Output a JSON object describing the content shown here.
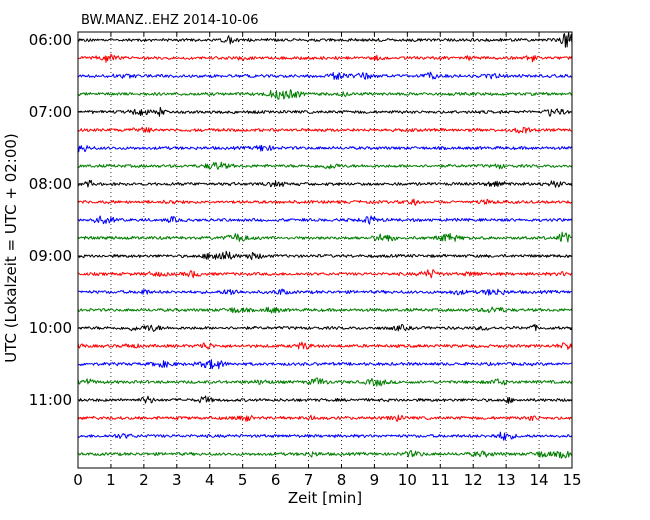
{
  "chart_data": {
    "type": "line",
    "title": "BW.MANZ..EHZ 2014-10-06",
    "xlabel": "Zeit  [min]",
    "ylabel": "UTC (Lokalzeit = UTC + 02:00)",
    "xlim": [
      0,
      15
    ],
    "x_ticks": [
      0,
      1,
      2,
      3,
      4,
      5,
      6,
      7,
      8,
      9,
      10,
      11,
      12,
      13,
      14,
      15
    ],
    "y_tick_labels": [
      "06:00",
      "07:00",
      "08:00",
      "09:00",
      "10:00",
      "11:00"
    ],
    "start_time": "06:00",
    "trace_interval_min": 15,
    "trace_count": 24,
    "trace_colors": [
      "#000000",
      "#ff0000",
      "#0000ff",
      "#007f00"
    ],
    "vertical_grid": "dotted",
    "series": [
      {
        "start": "06:00"
      },
      {
        "start": "06:15"
      },
      {
        "start": "06:30"
      },
      {
        "start": "06:45"
      },
      {
        "start": "07:00"
      },
      {
        "start": "07:15"
      },
      {
        "start": "07:30"
      },
      {
        "start": "07:45"
      },
      {
        "start": "08:00"
      },
      {
        "start": "08:15"
      },
      {
        "start": "08:30"
      },
      {
        "start": "08:45"
      },
      {
        "start": "09:00"
      },
      {
        "start": "09:15"
      },
      {
        "start": "09:30"
      },
      {
        "start": "09:45"
      },
      {
        "start": "10:00"
      },
      {
        "start": "10:15"
      },
      {
        "start": "10:30"
      },
      {
        "start": "10:45"
      },
      {
        "start": "11:00"
      },
      {
        "start": "11:15"
      },
      {
        "start": "11:30"
      },
      {
        "start": "11:45"
      }
    ]
  }
}
